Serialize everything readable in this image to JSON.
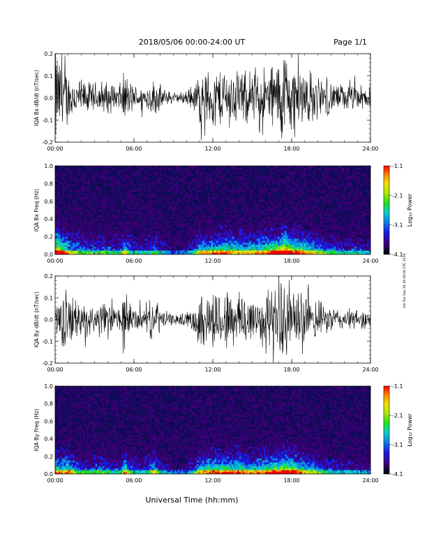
{
  "header": {
    "title": "2018/05/06  00:00-24:00 UT",
    "page": "Page 1/1"
  },
  "side_note": "mit Tue Sep 18 16:06:06 UTC 2018",
  "colorbar_label": "Log₁₀ Power",
  "time_axis": {
    "label": "Universal Time (hh:mm)",
    "ticks": [
      "00:00",
      "06:00",
      "12:00",
      "18:00",
      "24:00"
    ]
  },
  "colors": {
    "trace": "#000000",
    "spectrogram_background": "#120a5a",
    "colormap": [
      "#000000",
      "#3a0075",
      "#1d1ae0",
      "#0a8fe8",
      "#12d0c0",
      "#22e020",
      "#b8e810",
      "#f0e000",
      "#ff8800",
      "#ff0000"
    ]
  },
  "chart_data": [
    {
      "type": "line",
      "panel": "bx-waveform",
      "ylabel": "IQA Bx dB/dt (nT/sec)",
      "ylim": [
        -0.2,
        0.2
      ],
      "yticks": [
        "-0.2",
        "-0.1",
        "0.0",
        "0.1",
        "0.2"
      ],
      "xlim_hours": [
        0,
        24
      ],
      "amplitude_envelope": {
        "x_hours": [
          0,
          0.5,
          1,
          1.5,
          2,
          2.5,
          3,
          3.5,
          4,
          4.5,
          5,
          5.3,
          5.6,
          6,
          6.5,
          7,
          7.5,
          8,
          8.5,
          9,
          9.5,
          10,
          10.5,
          11,
          12,
          13,
          14,
          15,
          16,
          17,
          17.5,
          18,
          19,
          20,
          21,
          22,
          23,
          24
        ],
        "y_amplitude": [
          0.2,
          0.15,
          0.1,
          0.08,
          0.07,
          0.06,
          0.06,
          0.07,
          0.06,
          0.05,
          0.06,
          0.1,
          0.07,
          0.05,
          0.04,
          0.05,
          0.07,
          0.05,
          0.03,
          0.02,
          0.02,
          0.03,
          0.05,
          0.1,
          0.11,
          0.12,
          0.1,
          0.1,
          0.12,
          0.15,
          0.2,
          0.14,
          0.12,
          0.08,
          0.06,
          0.05,
          0.05,
          0.04
        ]
      }
    },
    {
      "type": "heatmap",
      "panel": "bx-spectrogram",
      "ylabel": "IQA Bx Freq (Hz)",
      "ylim": [
        0,
        1.0
      ],
      "yticks": [
        "0.0",
        "0.2",
        "0.4",
        "0.6",
        "0.8",
        "1.0"
      ],
      "xlim_hours": [
        0,
        24
      ],
      "colorbar": {
        "label": "Log₁₀ Power",
        "range": [
          -4.1,
          -1.1
        ],
        "ticks": [
          "-1.1",
          "-2.1",
          "-3.1",
          "-4.1"
        ]
      }
    },
    {
      "type": "line",
      "panel": "by-waveform",
      "ylabel": "IQA By dB/dt (nT/sec)",
      "ylim": [
        -0.2,
        0.2
      ],
      "yticks": [
        "-0.2",
        "-0.1",
        "0.0",
        "0.1",
        "0.2"
      ],
      "xlim_hours": [
        0,
        24
      ],
      "amplitude_envelope": {
        "x_hours": [
          0,
          0.5,
          1,
          1.5,
          2,
          2.5,
          3,
          3.5,
          4,
          4.5,
          5,
          5.3,
          5.6,
          6,
          6.5,
          7,
          7.5,
          8,
          8.5,
          9,
          9.5,
          10,
          10.5,
          11,
          12,
          13,
          14,
          15,
          16,
          17,
          17.5,
          18,
          19,
          20,
          21,
          22,
          23,
          24
        ],
        "y_amplitude": [
          0.12,
          0.1,
          0.12,
          0.08,
          0.06,
          0.06,
          0.06,
          0.07,
          0.06,
          0.05,
          0.06,
          0.12,
          0.07,
          0.05,
          0.04,
          0.05,
          0.09,
          0.05,
          0.03,
          0.02,
          0.02,
          0.03,
          0.05,
          0.1,
          0.12,
          0.12,
          0.12,
          0.1,
          0.12,
          0.13,
          0.16,
          0.14,
          0.1,
          0.07,
          0.05,
          0.04,
          0.04,
          0.03
        ]
      }
    },
    {
      "type": "heatmap",
      "panel": "by-spectrogram",
      "ylabel": "IQA By Freq (Hz)",
      "ylim": [
        0,
        1.0
      ],
      "yticks": [
        "0.0",
        "0.2",
        "0.4",
        "0.6",
        "0.8",
        "1.0"
      ],
      "xlim_hours": [
        0,
        24
      ],
      "colorbar": {
        "label": "Log₁₀ Power",
        "range": [
          -4.1,
          -1.1
        ],
        "ticks": [
          "-1.1",
          "-2.1",
          "-3.1",
          "-4.1"
        ]
      }
    }
  ]
}
